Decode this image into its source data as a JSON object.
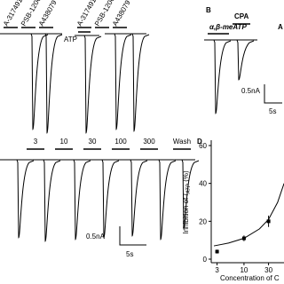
{
  "panel_a": {
    "drugs_1": [
      "A-317491",
      "PSB-12062",
      "A438079"
    ],
    "agonist": "ATP",
    "drugs_2": [
      "A-317491",
      "PSB-12062",
      "A438079"
    ]
  },
  "panel_b": {
    "label": "B",
    "agonist": "α,β-meATP",
    "blocker": "CPA",
    "cut_label": "A",
    "scale_current": "0.5nA",
    "scale_time": "5s"
  },
  "panel_c": {
    "concentrations": [
      "3",
      "10",
      "30",
      "100",
      "300"
    ],
    "wash": "Wash",
    "scale_current": "0.5nA",
    "scale_time": "5s"
  },
  "chart_data": {
    "type": "scatter",
    "label": "D",
    "ylabel": {
      "pre": "Inhibition of ",
      "var": "I",
      "sub": "ATP",
      "post": " (%)"
    },
    "xlabel": "Concentration of C",
    "log_x": true,
    "x": [
      3,
      10,
      30
    ],
    "values": [
      4,
      11,
      20
    ],
    "errors": [
      1,
      1.5,
      3
    ],
    "color": "#000000",
    "fit": {
      "x": [
        2.6,
        5,
        10,
        20,
        30,
        45,
        60
      ],
      "values": [
        7,
        8.5,
        11,
        16,
        21,
        30,
        40
      ]
    },
    "xlim": [
      2.5,
      70
    ],
    "xticks": [
      3,
      10,
      30
    ],
    "ylim": [
      0,
      60
    ],
    "yticks": [
      0,
      20,
      40,
      60
    ]
  }
}
